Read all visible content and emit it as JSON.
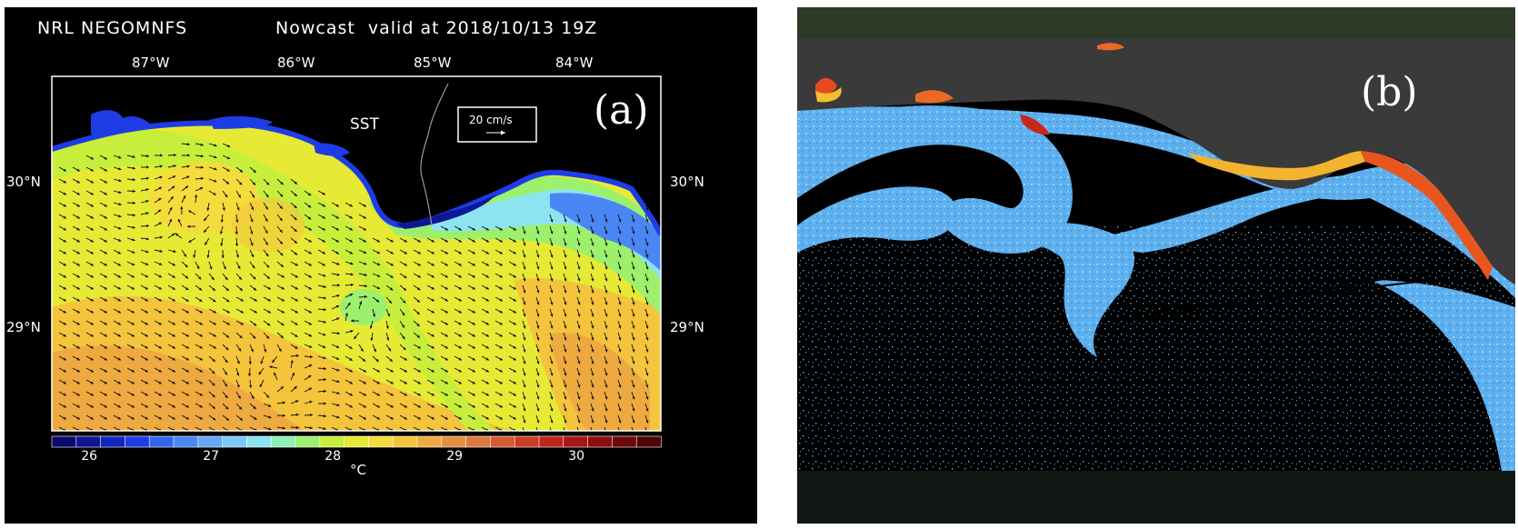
{
  "panel_a": {
    "model_title": "NRL NEGOMNFS",
    "nowcast_title": "Nowcast  valid at 2018/10/13 19Z",
    "panel_label": "(a)",
    "field_label": "SST",
    "scale_vector_label": "20 cm/s",
    "lon_labels": [
      "87°W",
      "86°W",
      "85°W",
      "84°W"
    ],
    "lat_labels": [
      "30°N",
      "29°N"
    ],
    "colorbar": {
      "unit": "°C",
      "tick_labels": [
        "26",
        "27",
        "28",
        "29",
        "30"
      ],
      "colors": [
        "#0a0a6e",
        "#0f1696",
        "#1424be",
        "#1e3ce6",
        "#3264f0",
        "#4a86f4",
        "#64a8f6",
        "#7cc8f8",
        "#8ce4f0",
        "#8ef0b4",
        "#9cf06c",
        "#c8ee3c",
        "#e6ea34",
        "#f4dc3c",
        "#f4c43c",
        "#eeaa40",
        "#e49040",
        "#dc7840",
        "#d45a30",
        "#cc3c24",
        "#c02418",
        "#aa1414",
        "#8c0e0e",
        "#6e0808",
        "#500404"
      ]
    }
  },
  "panel_b": {
    "panel_label": "(b)"
  }
}
